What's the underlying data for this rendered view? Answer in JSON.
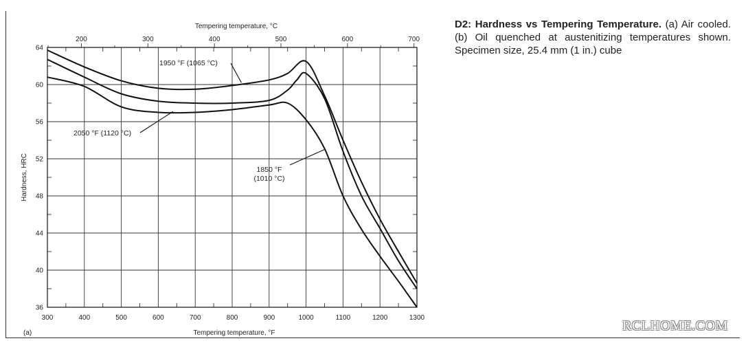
{
  "caption": {
    "title": "D2: Hardness vs Tempering Temperature.",
    "body": " (a) Air cooled. (b) Oil quenched at austenitizing temperatures shown. Specimen size, 25.4 mm (1 in.) cube"
  },
  "panel_label": "(a)",
  "watermark": "RCLHOME.COM",
  "chart_data": {
    "type": "line",
    "title": "",
    "xlabel": "Tempering temperature, °F",
    "x2label": "Tempering temperature, °C",
    "ylabel": "Hardness, HRC",
    "xlim": [
      300,
      1300
    ],
    "ylim": [
      36,
      64
    ],
    "x_ticks": [
      300,
      400,
      500,
      600,
      700,
      800,
      900,
      1000,
      1100,
      1200,
      1300
    ],
    "y_ticks": [
      36,
      40,
      44,
      48,
      52,
      56,
      60,
      64
    ],
    "x2_ticks": [
      200,
      300,
      400,
      500,
      600,
      700
    ],
    "grid": true,
    "annotations": [
      {
        "lines": [
          "1950 °F (1065 °C)"
        ],
        "target": [
          825,
          60.2
        ]
      },
      {
        "lines": [
          "2050 °F (1120 °C)"
        ],
        "target": [
          640,
          57.1
        ]
      },
      {
        "lines": [
          "1850 °F",
          "(1010 °C)"
        ],
        "target": [
          1050,
          53.0
        ]
      }
    ],
    "series": [
      {
        "name": "1950 °F (1065 °C)",
        "x": [
          300,
          400,
          500,
          600,
          700,
          800,
          900,
          950,
          1000,
          1050,
          1100,
          1150,
          1200,
          1250,
          1300
        ],
        "y": [
          63.7,
          61.9,
          60.4,
          59.6,
          59.5,
          59.9,
          60.5,
          61.2,
          62.5,
          58.8,
          54.0,
          49.5,
          45.5,
          42.0,
          38.6
        ]
      },
      {
        "name": "2050 °F (1120 °C)",
        "x": [
          300,
          400,
          500,
          600,
          700,
          800,
          900,
          950,
          975,
          1000,
          1050,
          1100,
          1150,
          1200,
          1250,
          1300
        ],
        "y": [
          62.7,
          60.8,
          59.0,
          58.2,
          58.0,
          58.0,
          58.3,
          59.4,
          60.5,
          61.2,
          58.5,
          52.8,
          48.0,
          44.5,
          41.0,
          38.0
        ]
      },
      {
        "name": "1850 °F (1010 °C)",
        "x": [
          300,
          400,
          500,
          600,
          700,
          800,
          900,
          950,
          1000,
          1050,
          1100,
          1150,
          1200,
          1250,
          1300
        ],
        "y": [
          60.8,
          59.8,
          57.6,
          57.0,
          57.0,
          57.3,
          57.8,
          58.0,
          56.2,
          53.1,
          48.0,
          44.4,
          41.5,
          38.8,
          36.0
        ]
      }
    ]
  }
}
